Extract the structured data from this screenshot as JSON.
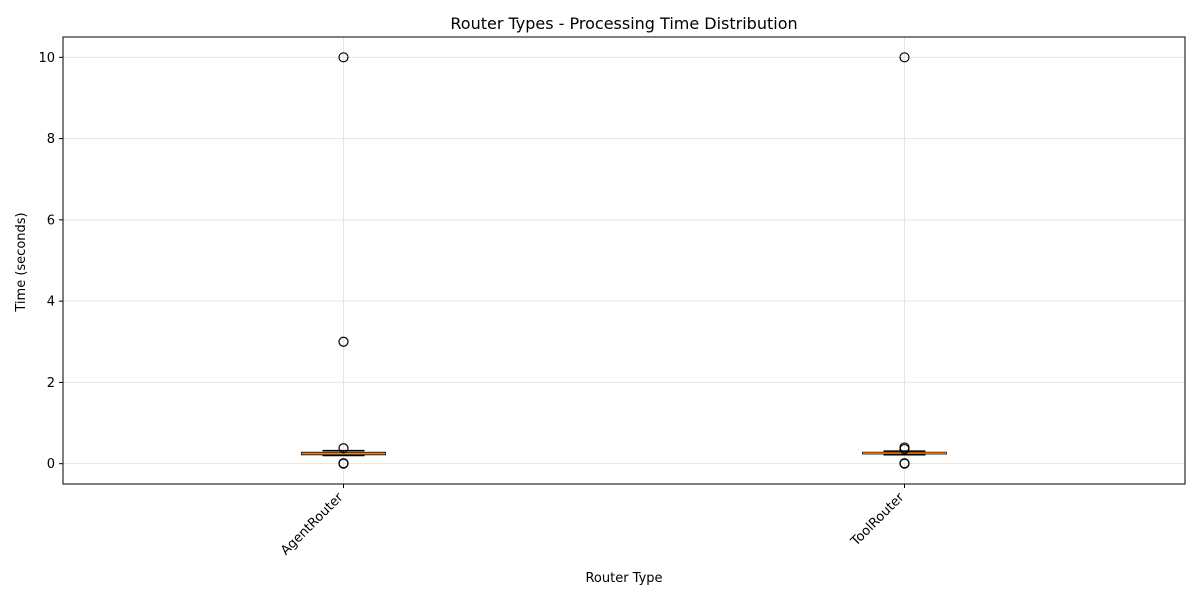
{
  "chart_data": {
    "type": "box",
    "title": "Router Types - Processing Time Distribution",
    "xlabel": "Router Type",
    "ylabel": "Time (seconds)",
    "ylim": [
      -0.5,
      10.5
    ],
    "yticks": [
      0,
      2,
      4,
      6,
      8,
      10
    ],
    "grid": true,
    "categories": [
      "AgentRouter",
      "ToolRouter"
    ],
    "boxes": [
      {
        "category": "AgentRouter",
        "whisker_low": 0.2,
        "q1": 0.22,
        "median": 0.25,
        "q3": 0.28,
        "whisker_high": 0.32,
        "outliers": [
          10.0,
          3.0,
          0.38,
          0.01,
          0.0
        ]
      },
      {
        "category": "ToolRouter",
        "whisker_low": 0.22,
        "q1": 0.24,
        "median": 0.26,
        "q3": 0.28,
        "whisker_high": 0.31,
        "outliers": [
          10.0,
          0.4,
          0.36,
          0.01,
          0.0
        ]
      }
    ],
    "colors": {
      "box": "#000000",
      "median": "#ff7f0e",
      "grid": "#e5e5e5"
    }
  }
}
